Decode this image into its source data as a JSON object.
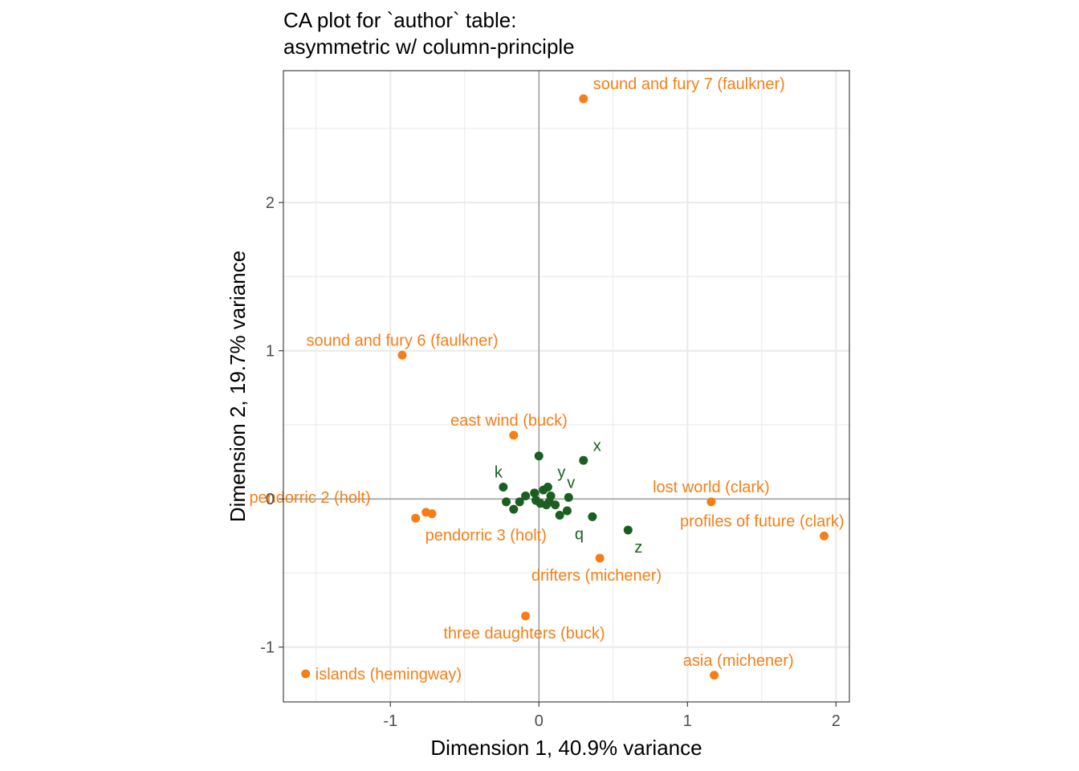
{
  "chart_data": {
    "type": "scatter",
    "title": "CA plot for `author` table:",
    "subtitle": "asymmetric w/ column-principle",
    "xlabel": "Dimension 1, 40.9% variance",
    "ylabel": "Dimension 2, 19.7% variance",
    "xlim": [
      -1.72,
      2.09
    ],
    "ylim": [
      -1.37,
      2.89
    ],
    "xticks": [
      -1,
      0,
      1,
      2
    ],
    "xtick_labels": [
      "-1",
      "0",
      "1",
      "2"
    ],
    "yticks": [
      -1,
      0,
      1,
      2
    ],
    "ytick_labels": [
      "-1",
      "0",
      "1",
      "2"
    ],
    "grid": true,
    "reference_lines": {
      "x": 0,
      "y": 0
    },
    "colors": {
      "rows": "#f57f17",
      "columns": "#1b5e20",
      "grid": "#ebebeb",
      "panel_border": "#333333",
      "refline": "#808080"
    },
    "series": [
      {
        "name": "",
        "color": "#f57f17",
        "points": [
          {
            "label": "sound and fury 7 (faulkner)",
            "x": 0.3,
            "y": 2.7,
            "label_pos": "above-right"
          },
          {
            "label": "sound and fury 6 (faulkner)",
            "x": -0.92,
            "y": 0.97,
            "label_pos": "above"
          },
          {
            "label": "east wind (buck)",
            "x": -0.17,
            "y": 0.43,
            "label_pos": "above-left"
          },
          {
            "label": "pendorric 2 (holt)",
            "x": -0.76,
            "y": -0.09,
            "label_pos": "above-left"
          },
          {
            "label": "",
            "x": -0.72,
            "y": -0.1,
            "label_pos": "none"
          },
          {
            "label": "pendorric 3 (holt)",
            "x": -0.83,
            "y": -0.13,
            "label_pos": "below-right"
          },
          {
            "label": "lost world (clark)",
            "x": 1.16,
            "y": -0.02,
            "label_pos": "above"
          },
          {
            "label": "profiles of future (clark)",
            "x": 1.92,
            "y": -0.25,
            "label_pos": "above-left"
          },
          {
            "label": "drifters (michener)",
            "x": 0.41,
            "y": -0.4,
            "label_pos": "below-left"
          },
          {
            "label": "three daughters (buck)",
            "x": -0.09,
            "y": -0.79,
            "label_pos": "below-left"
          },
          {
            "label": "asia (michener)",
            "x": 1.18,
            "y": -1.19,
            "label_pos": "above-left"
          },
          {
            "label": "islands (hemingway)",
            "x": -1.57,
            "y": -1.18,
            "label_pos": "right"
          }
        ]
      },
      {
        "name": "",
        "color": "#1b5e20",
        "points": [
          {
            "label": "x",
            "x": 0.3,
            "y": 0.26,
            "label_pos": "above-right"
          },
          {
            "label": "",
            "x": 0.0,
            "y": 0.29,
            "label_pos": "none"
          },
          {
            "label": "k",
            "x": -0.24,
            "y": 0.08,
            "label_pos": "above-left"
          },
          {
            "label": "y",
            "x": 0.06,
            "y": 0.08,
            "label_pos": "above-right"
          },
          {
            "label": "v",
            "x": 0.2,
            "y": 0.01,
            "label_pos": "above-right"
          },
          {
            "label": "q",
            "x": 0.36,
            "y": -0.12,
            "label_pos": "below-right"
          },
          {
            "label": "z",
            "x": 0.6,
            "y": -0.21,
            "label_pos": "below-right"
          },
          {
            "label": "",
            "x": -0.22,
            "y": -0.02,
            "label_pos": "none"
          },
          {
            "label": "",
            "x": -0.17,
            "y": -0.07,
            "label_pos": "none"
          },
          {
            "label": "",
            "x": -0.13,
            "y": -0.02,
            "label_pos": "none"
          },
          {
            "label": "",
            "x": -0.09,
            "y": 0.02,
            "label_pos": "none"
          },
          {
            "label": "",
            "x": -0.03,
            "y": 0.04,
            "label_pos": "none"
          },
          {
            "label": "",
            "x": -0.02,
            "y": -0.01,
            "label_pos": "none"
          },
          {
            "label": "",
            "x": 0.01,
            "y": -0.03,
            "label_pos": "none"
          },
          {
            "label": "",
            "x": 0.03,
            "y": 0.06,
            "label_pos": "none"
          },
          {
            "label": "",
            "x": 0.05,
            "y": -0.04,
            "label_pos": "none"
          },
          {
            "label": "",
            "x": 0.08,
            "y": 0.02,
            "label_pos": "none"
          },
          {
            "label": "",
            "x": 0.07,
            "y": -0.02,
            "label_pos": "none"
          },
          {
            "label": "",
            "x": 0.11,
            "y": -0.04,
            "label_pos": "none"
          },
          {
            "label": "",
            "x": 0.14,
            "y": -0.11,
            "label_pos": "none"
          },
          {
            "label": "",
            "x": 0.19,
            "y": -0.08,
            "label_pos": "none"
          }
        ]
      }
    ]
  }
}
